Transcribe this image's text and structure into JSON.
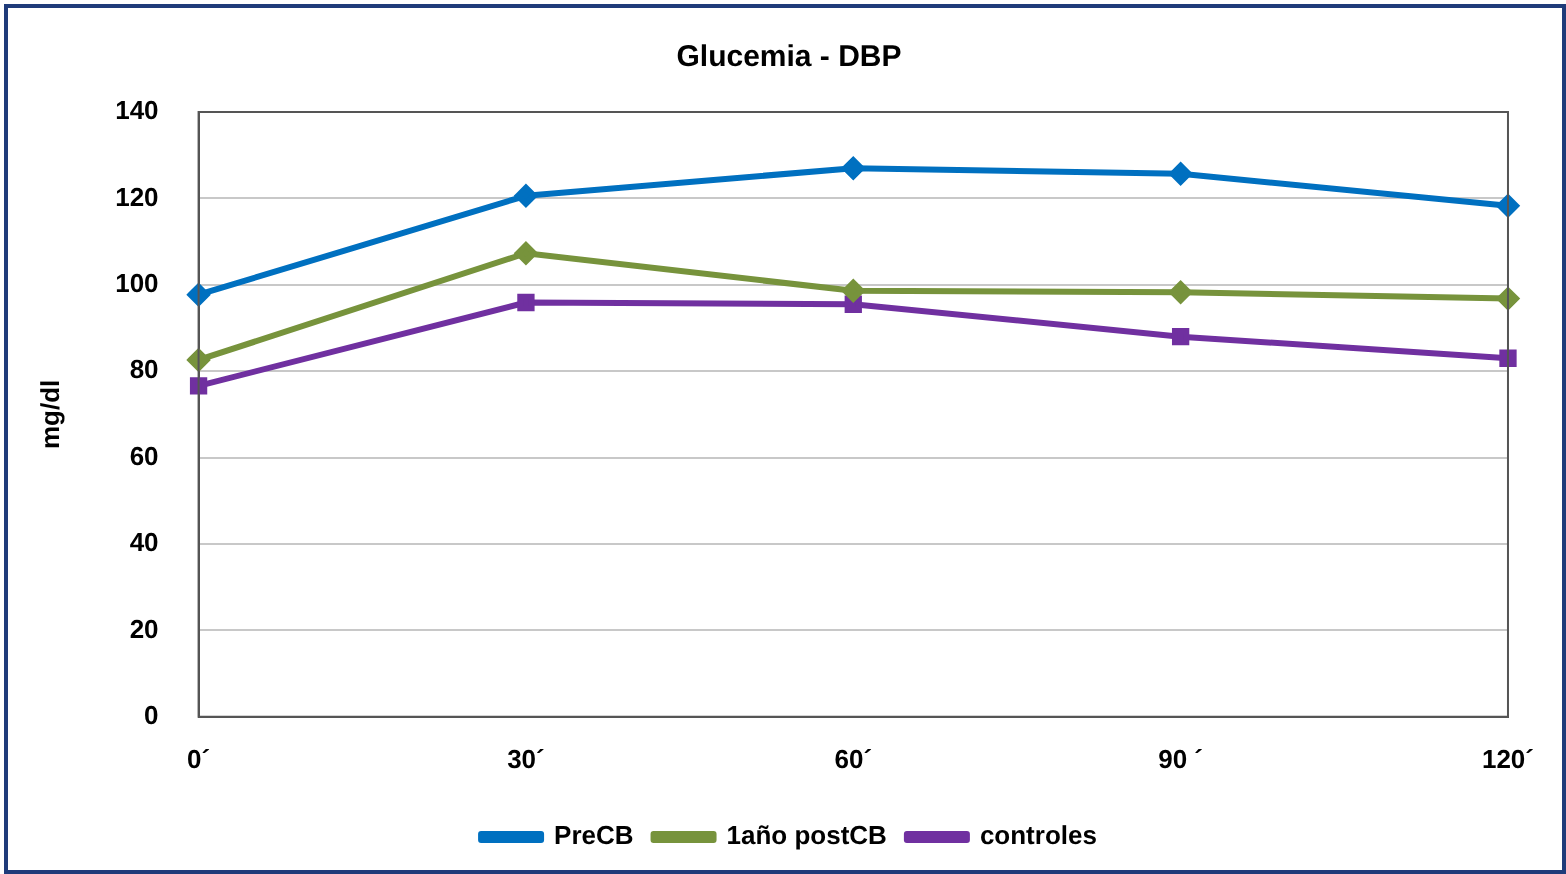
{
  "chart_data": {
    "type": "line",
    "title": "Glucemia - DBP",
    "ylabel": "mg/dl",
    "categories": [
      "0´",
      "30´",
      "60´",
      "90 ´",
      "120´"
    ],
    "ylim": [
      0,
      140
    ],
    "yticks": [
      0,
      20,
      40,
      60,
      80,
      100,
      120,
      140
    ],
    "grid": "y",
    "legend": "bottom",
    "series": [
      {
        "name": "PreCB",
        "color": "#0070c0",
        "marker": "diamond",
        "values": [
          97.7,
          120.6,
          127,
          125.7,
          118.3
        ]
      },
      {
        "name": "1año postCB",
        "color": "#77933c",
        "marker": "diamond",
        "values": [
          82.6,
          107.3,
          98.6,
          98.3,
          96.8
        ]
      },
      {
        "name": "controles",
        "color": "#7030a0",
        "marker": "square",
        "values": [
          76.6,
          95.9,
          95.5,
          88,
          83
        ]
      }
    ]
  }
}
